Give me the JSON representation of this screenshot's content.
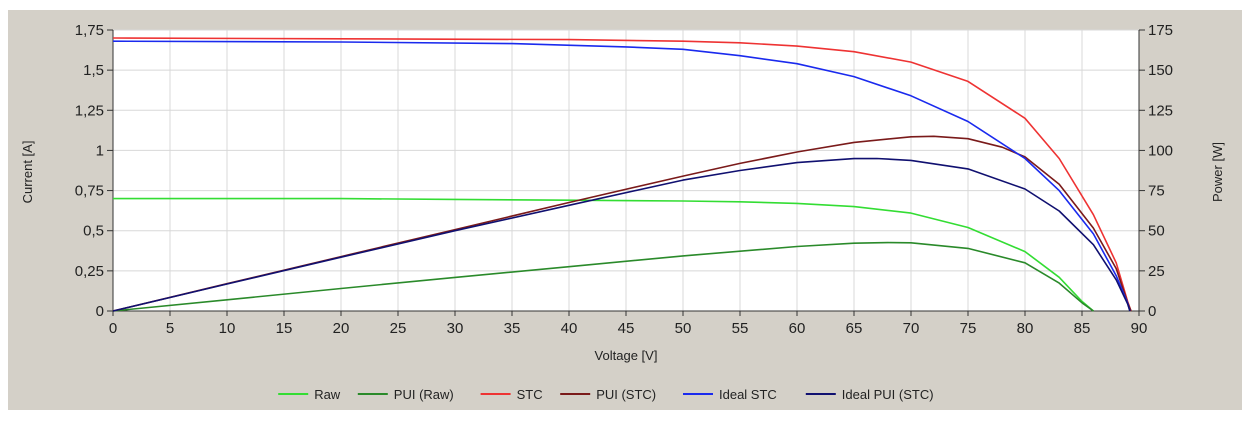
{
  "chart_data": {
    "type": "line",
    "xlabel": "Voltage [V]",
    "ylabel_left": "Current [A]",
    "ylabel_right": "Power [W]",
    "xlim": [
      0,
      90
    ],
    "ylim_left": [
      0,
      1.75
    ],
    "ylim_right": [
      0,
      175
    ],
    "x_ticks": [
      "0",
      "5",
      "10",
      "15",
      "20",
      "25",
      "30",
      "35",
      "40",
      "45",
      "50",
      "55",
      "60",
      "65",
      "70",
      "75",
      "80",
      "85",
      "90"
    ],
    "y_ticks_left": [
      "0",
      "0,25",
      "0,5",
      "0,75",
      "1",
      "1,25",
      "1,5",
      "1,75"
    ],
    "y_ticks_right": [
      "0",
      "25",
      "50",
      "75",
      "100",
      "125",
      "150",
      "175"
    ],
    "grid": true,
    "legend_position": "bottom",
    "series": [
      {
        "name": "Raw",
        "axis": "left",
        "color": "#33dd33",
        "points": [
          [
            0,
            0.7
          ],
          [
            10,
            0.7
          ],
          [
            20,
            0.7
          ],
          [
            30,
            0.695
          ],
          [
            40,
            0.69
          ],
          [
            50,
            0.685
          ],
          [
            55,
            0.68
          ],
          [
            60,
            0.67
          ],
          [
            65,
            0.65
          ],
          [
            70,
            0.61
          ],
          [
            75,
            0.52
          ],
          [
            80,
            0.37
          ],
          [
            83,
            0.21
          ],
          [
            85,
            0.06
          ],
          [
            86,
            0
          ]
        ]
      },
      {
        "name": "PUI (Raw)",
        "axis": "right",
        "color": "#2a8a2a",
        "points": [
          [
            0,
            0
          ],
          [
            10,
            7
          ],
          [
            20,
            14
          ],
          [
            30,
            20.9
          ],
          [
            40,
            27.6
          ],
          [
            50,
            34.3
          ],
          [
            60,
            40.2
          ],
          [
            65,
            42.2
          ],
          [
            68,
            42.6
          ],
          [
            70,
            42.5
          ],
          [
            75,
            39
          ],
          [
            80,
            30
          ],
          [
            83,
            17.4
          ],
          [
            85,
            5.1
          ],
          [
            86,
            0
          ]
        ]
      },
      {
        "name": "STC",
        "axis": "left",
        "color": "#ee3333",
        "points": [
          [
            0,
            1.7
          ],
          [
            20,
            1.695
          ],
          [
            40,
            1.69
          ],
          [
            50,
            1.68
          ],
          [
            55,
            1.67
          ],
          [
            60,
            1.65
          ],
          [
            65,
            1.615
          ],
          [
            70,
            1.55
          ],
          [
            75,
            1.43
          ],
          [
            80,
            1.2
          ],
          [
            83,
            0.95
          ],
          [
            86,
            0.6
          ],
          [
            88,
            0.3
          ],
          [
            89,
            0.06
          ],
          [
            89.3,
            0
          ]
        ]
      },
      {
        "name": "PUI (STC)",
        "axis": "right",
        "color": "#7a1a1a",
        "points": [
          [
            0,
            0
          ],
          [
            10,
            17
          ],
          [
            20,
            33.9
          ],
          [
            30,
            50.7
          ],
          [
            40,
            67.6
          ],
          [
            50,
            84
          ],
          [
            55,
            91.9
          ],
          [
            60,
            99
          ],
          [
            65,
            105
          ],
          [
            70,
            108.5
          ],
          [
            72,
            108.8
          ],
          [
            75,
            107.3
          ],
          [
            78,
            102
          ],
          [
            80,
            96
          ],
          [
            83,
            78.9
          ],
          [
            86,
            51.6
          ],
          [
            88,
            26.4
          ],
          [
            89,
            5.3
          ],
          [
            89.3,
            0
          ]
        ]
      },
      {
        "name": "Ideal STC",
        "axis": "left",
        "color": "#1a2aee",
        "points": [
          [
            0,
            1.68
          ],
          [
            20,
            1.675
          ],
          [
            35,
            1.665
          ],
          [
            45,
            1.645
          ],
          [
            50,
            1.63
          ],
          [
            55,
            1.59
          ],
          [
            60,
            1.54
          ],
          [
            65,
            1.46
          ],
          [
            70,
            1.34
          ],
          [
            75,
            1.18
          ],
          [
            80,
            0.95
          ],
          [
            83,
            0.75
          ],
          [
            86,
            0.48
          ],
          [
            88,
            0.22
          ],
          [
            89,
            0.05
          ],
          [
            89.2,
            0
          ]
        ]
      },
      {
        "name": "Ideal PUI (STC)",
        "axis": "right",
        "color": "#101070",
        "points": [
          [
            0,
            0
          ],
          [
            10,
            16.8
          ],
          [
            20,
            33.5
          ],
          [
            30,
            50
          ],
          [
            40,
            65.8
          ],
          [
            50,
            81.5
          ],
          [
            55,
            87.5
          ],
          [
            60,
            92.4
          ],
          [
            65,
            94.9
          ],
          [
            67,
            95
          ],
          [
            70,
            93.8
          ],
          [
            75,
            88.5
          ],
          [
            80,
            76
          ],
          [
            83,
            62.3
          ],
          [
            86,
            41.3
          ],
          [
            88,
            19.4
          ],
          [
            89,
            4.5
          ],
          [
            89.2,
            0
          ]
        ]
      }
    ]
  }
}
